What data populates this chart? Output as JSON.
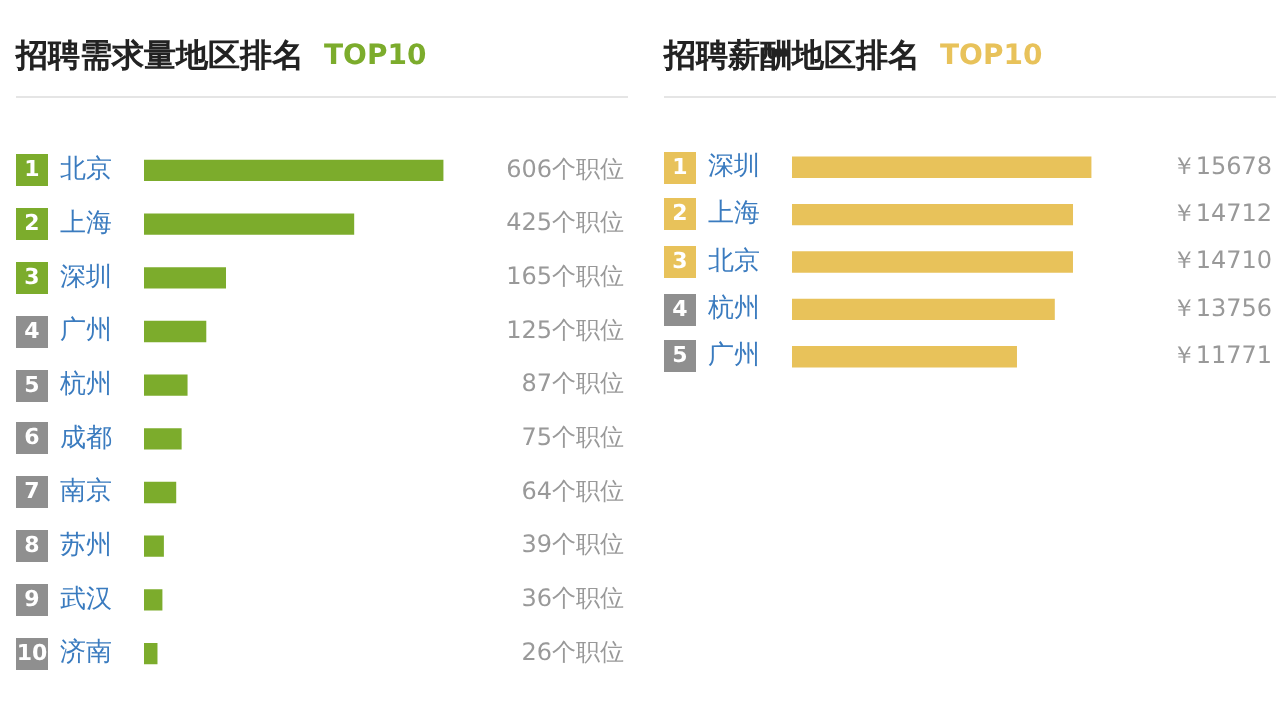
{
  "chart_data": [
    {
      "type": "bar",
      "orientation": "horizontal",
      "title": "招聘需求量地区排名",
      "subtitle": "TOP10",
      "categories": [
        "北京",
        "上海",
        "深圳",
        "广州",
        "杭州",
        "成都",
        "南京",
        "苏州",
        "武汉",
        "济南"
      ],
      "values": [
        606,
        425,
        165,
        125,
        87,
        75,
        64,
        39,
        36,
        26
      ],
      "color": "#7cac2c",
      "value_labels": [
        "606个职位",
        "425个职位",
        "165个职位",
        "125个职位",
        "87个职位",
        "75个职位",
        "64个职位",
        "39个职位",
        "36个职位",
        "26个职位"
      ],
      "annotations": [
        "1",
        "2",
        "3",
        "4",
        "5",
        "6",
        "7",
        "8",
        "9",
        "10"
      ],
      "grid": false,
      "legend": false
    },
    {
      "type": "bar",
      "orientation": "horizontal",
      "title": "招聘薪酬地区排名",
      "subtitle": "TOP10",
      "categories": [
        "深圳",
        "上海",
        "北京",
        "杭州",
        "广州"
      ],
      "values": [
        15678,
        14712,
        14710,
        13756,
        11771
      ],
      "color": "#e8c25a",
      "value_labels": [
        "￥15678",
        "￥14712",
        "￥14710",
        "￥13756",
        "￥11771"
      ],
      "annotations": [
        "1",
        "2",
        "3",
        "4",
        "5"
      ],
      "grid": false,
      "legend": false
    }
  ]
}
